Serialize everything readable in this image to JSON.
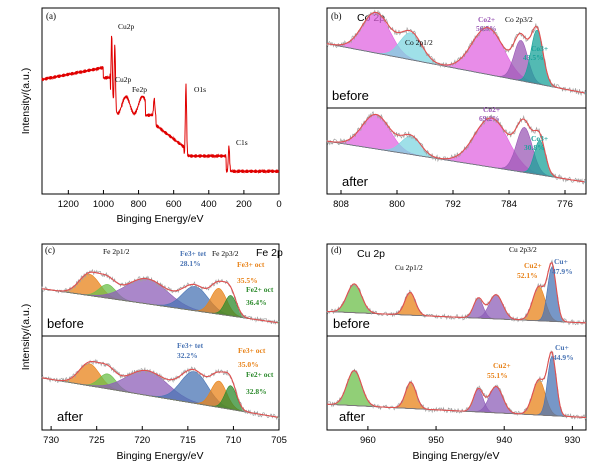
{
  "chart_data": [
    {
      "type": "line",
      "panel": "(a)",
      "xlabel": "Binging Energy/eV",
      "ylabel": "Intensity/(a.u.)",
      "xlim": [
        1350,
        0
      ],
      "xticks": [
        "1200",
        "1000",
        "800",
        "600",
        "400",
        "200",
        "0"
      ],
      "peaks": [
        {
          "label": "Cu2p",
          "x": 935
        },
        {
          "label": "Cu2p",
          "x": 953
        },
        {
          "label": "Fe2p",
          "x": 711
        },
        {
          "label": "O1s",
          "x": 530
        },
        {
          "label": "C1s",
          "x": 285
        }
      ],
      "line_color": "#e00000"
    },
    {
      "type": "area",
      "panel": "(b)",
      "title": "Co 2p",
      "xlabel": "",
      "xlim": [
        810,
        773
      ],
      "xticks": [
        "808",
        "800",
        "792",
        "784",
        "776"
      ],
      "peak_labels": [
        "Co 2p1/2",
        "Co 2p3/2"
      ],
      "before": [
        {
          "label": "Co2+",
          "value": "56.5%",
          "color": "#9b59b6"
        },
        {
          "label": "Co3+",
          "value": "43.5%",
          "color": "#1aa39a"
        }
      ],
      "after": [
        {
          "label": "Co2+",
          "value": "69.2%",
          "color": "#9b59b6"
        },
        {
          "label": "Co3+",
          "value": "30.8%",
          "color": "#1aa39a"
        }
      ],
      "states": [
        "before",
        "after"
      ]
    },
    {
      "type": "area",
      "panel": "(c)",
      "title": "Fe 2p",
      "xlabel": "Binging Energy/eV",
      "ylabel": "Intensity/(a.u.)",
      "xlim": [
        731,
        705
      ],
      "xticks": [
        "730",
        "725",
        "720",
        "715",
        "710",
        "705"
      ],
      "peak_labels": [
        "Fe 2p1/2",
        "Fe 2p3/2"
      ],
      "before": [
        {
          "label": "Fe3+ tet",
          "value": "28.1%",
          "color": "#4a74b4"
        },
        {
          "label": "Fe3+ oct",
          "value": "35.5%",
          "color": "#e8831a"
        },
        {
          "label": "Fe2+ oct",
          "value": "36.4%",
          "color": "#2e8b2e"
        }
      ],
      "after": [
        {
          "label": "Fe3+ tet",
          "value": "32.2%",
          "color": "#4a74b4"
        },
        {
          "label": "Fe3+ oct",
          "value": "35.0%",
          "color": "#e8831a"
        },
        {
          "label": "Fe2+ oct",
          "value": "32.8%",
          "color": "#2e8b2e"
        }
      ],
      "states": [
        "before",
        "after"
      ]
    },
    {
      "type": "area",
      "panel": "(d)",
      "title": "Cu 2p",
      "xlabel": "Binging Energy/eV",
      "xlim": [
        966,
        928
      ],
      "xticks": [
        "960",
        "950",
        "940",
        "930"
      ],
      "peak_labels": [
        "Cu 2p1/2",
        "Cu 2p3/2"
      ],
      "before": [
        {
          "label": "Cu2+",
          "value": "52.1%",
          "color": "#e8831a"
        },
        {
          "label": "Cu+",
          "value": "47.9%",
          "color": "#4a74b4"
        }
      ],
      "after": [
        {
          "label": "Cu2+",
          "value": "55.1%",
          "color": "#e8831a"
        },
        {
          "label": "Cu+",
          "value": "44.9%",
          "color": "#4a74b4"
        }
      ],
      "states": [
        "before",
        "after"
      ]
    }
  ]
}
